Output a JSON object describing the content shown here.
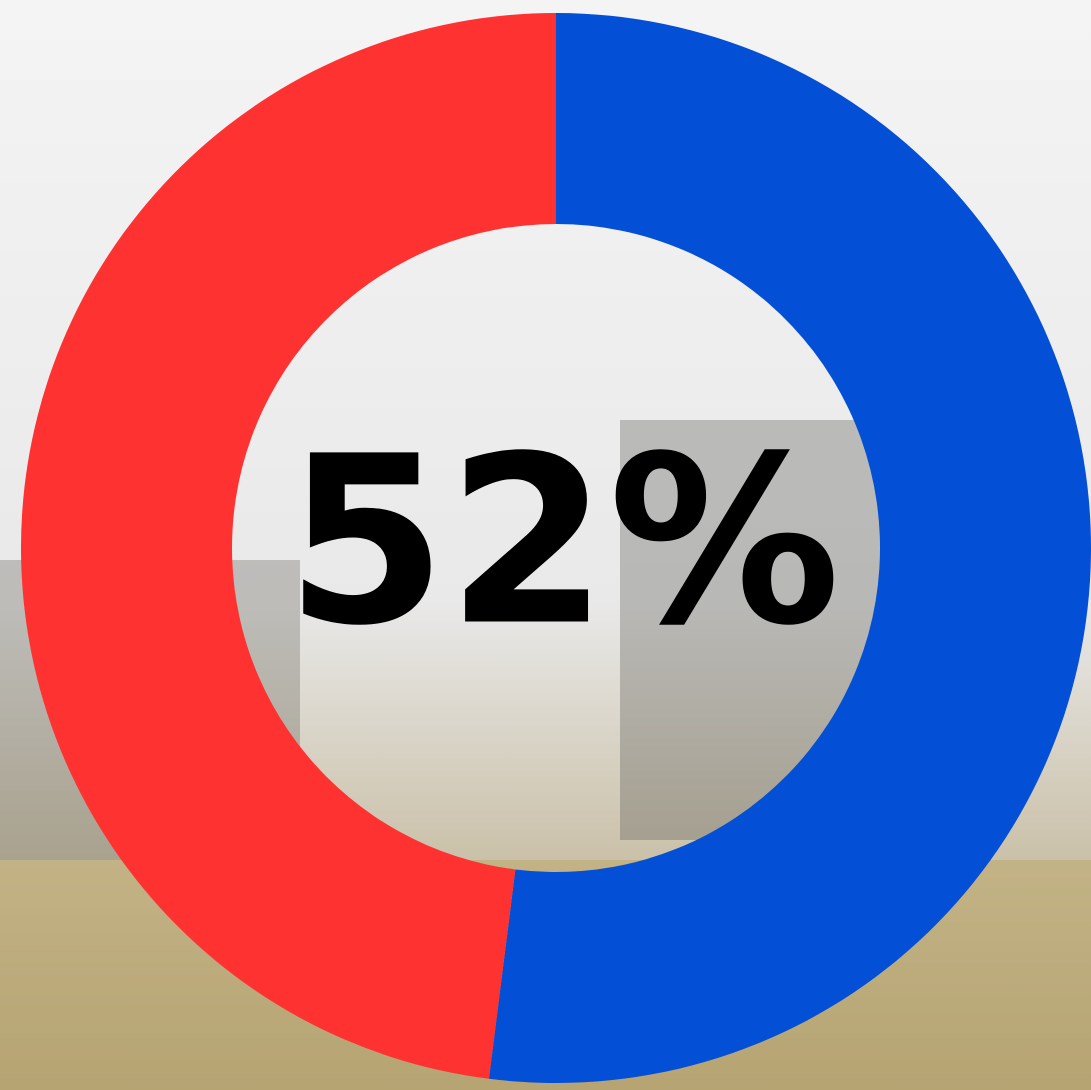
{
  "chart_data": {
    "type": "donut",
    "values": [
      52,
      48
    ],
    "colors": [
      "#034fd6",
      "#ff3232"
    ],
    "center_label": "52%"
  }
}
